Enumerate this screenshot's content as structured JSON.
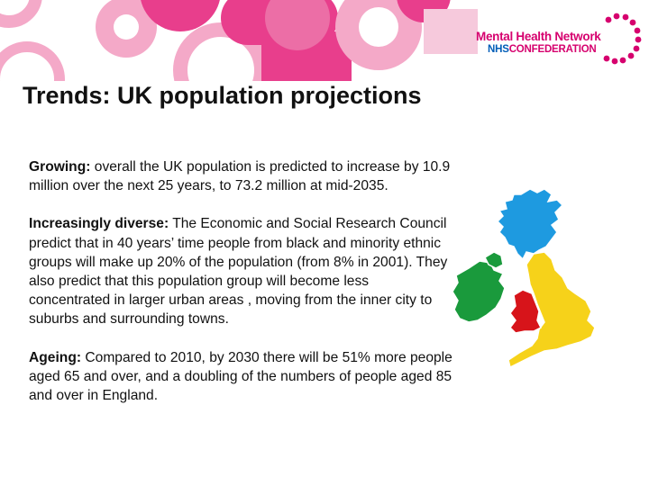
{
  "logo": {
    "line1": "Mental Health Network",
    "line2_nhs": "NHS",
    "line2_rest": "CONFEDERATION"
  },
  "title": "Trends: UK population projections",
  "paragraphs": [
    {
      "lead": "Growing:",
      "body": " overall the UK population is predicted to increase by 10.9 million over the next 25 years, to 73.2 million at mid-2035."
    },
    {
      "lead": "Increasingly diverse:",
      "body": " The Economic and Social Research Council predict that in 40 years’ time people from black and minority ethnic groups will make up 20% of the population (from 8% in 2001). They also predict that this population group will become less concentrated in larger urban areas , moving from the inner city to suburbs and surrounding towns."
    },
    {
      "lead": "Ageing:",
      "body": " Compared to 2010, by 2030 there will be 51% more people aged 65 and over, and a doubling of the numbers of people aged 85 and over in England."
    }
  ],
  "colors": {
    "header_pink": "#e83e8c",
    "header_light_pink": "#f4a9c8",
    "logo_magenta": "#d6006e",
    "logo_blue": "#005eb8",
    "map_scotland": "#1e9ae0",
    "map_ireland": "#1a9a3c",
    "map_wales": "#d7141a",
    "map_england": "#f6d21a"
  }
}
